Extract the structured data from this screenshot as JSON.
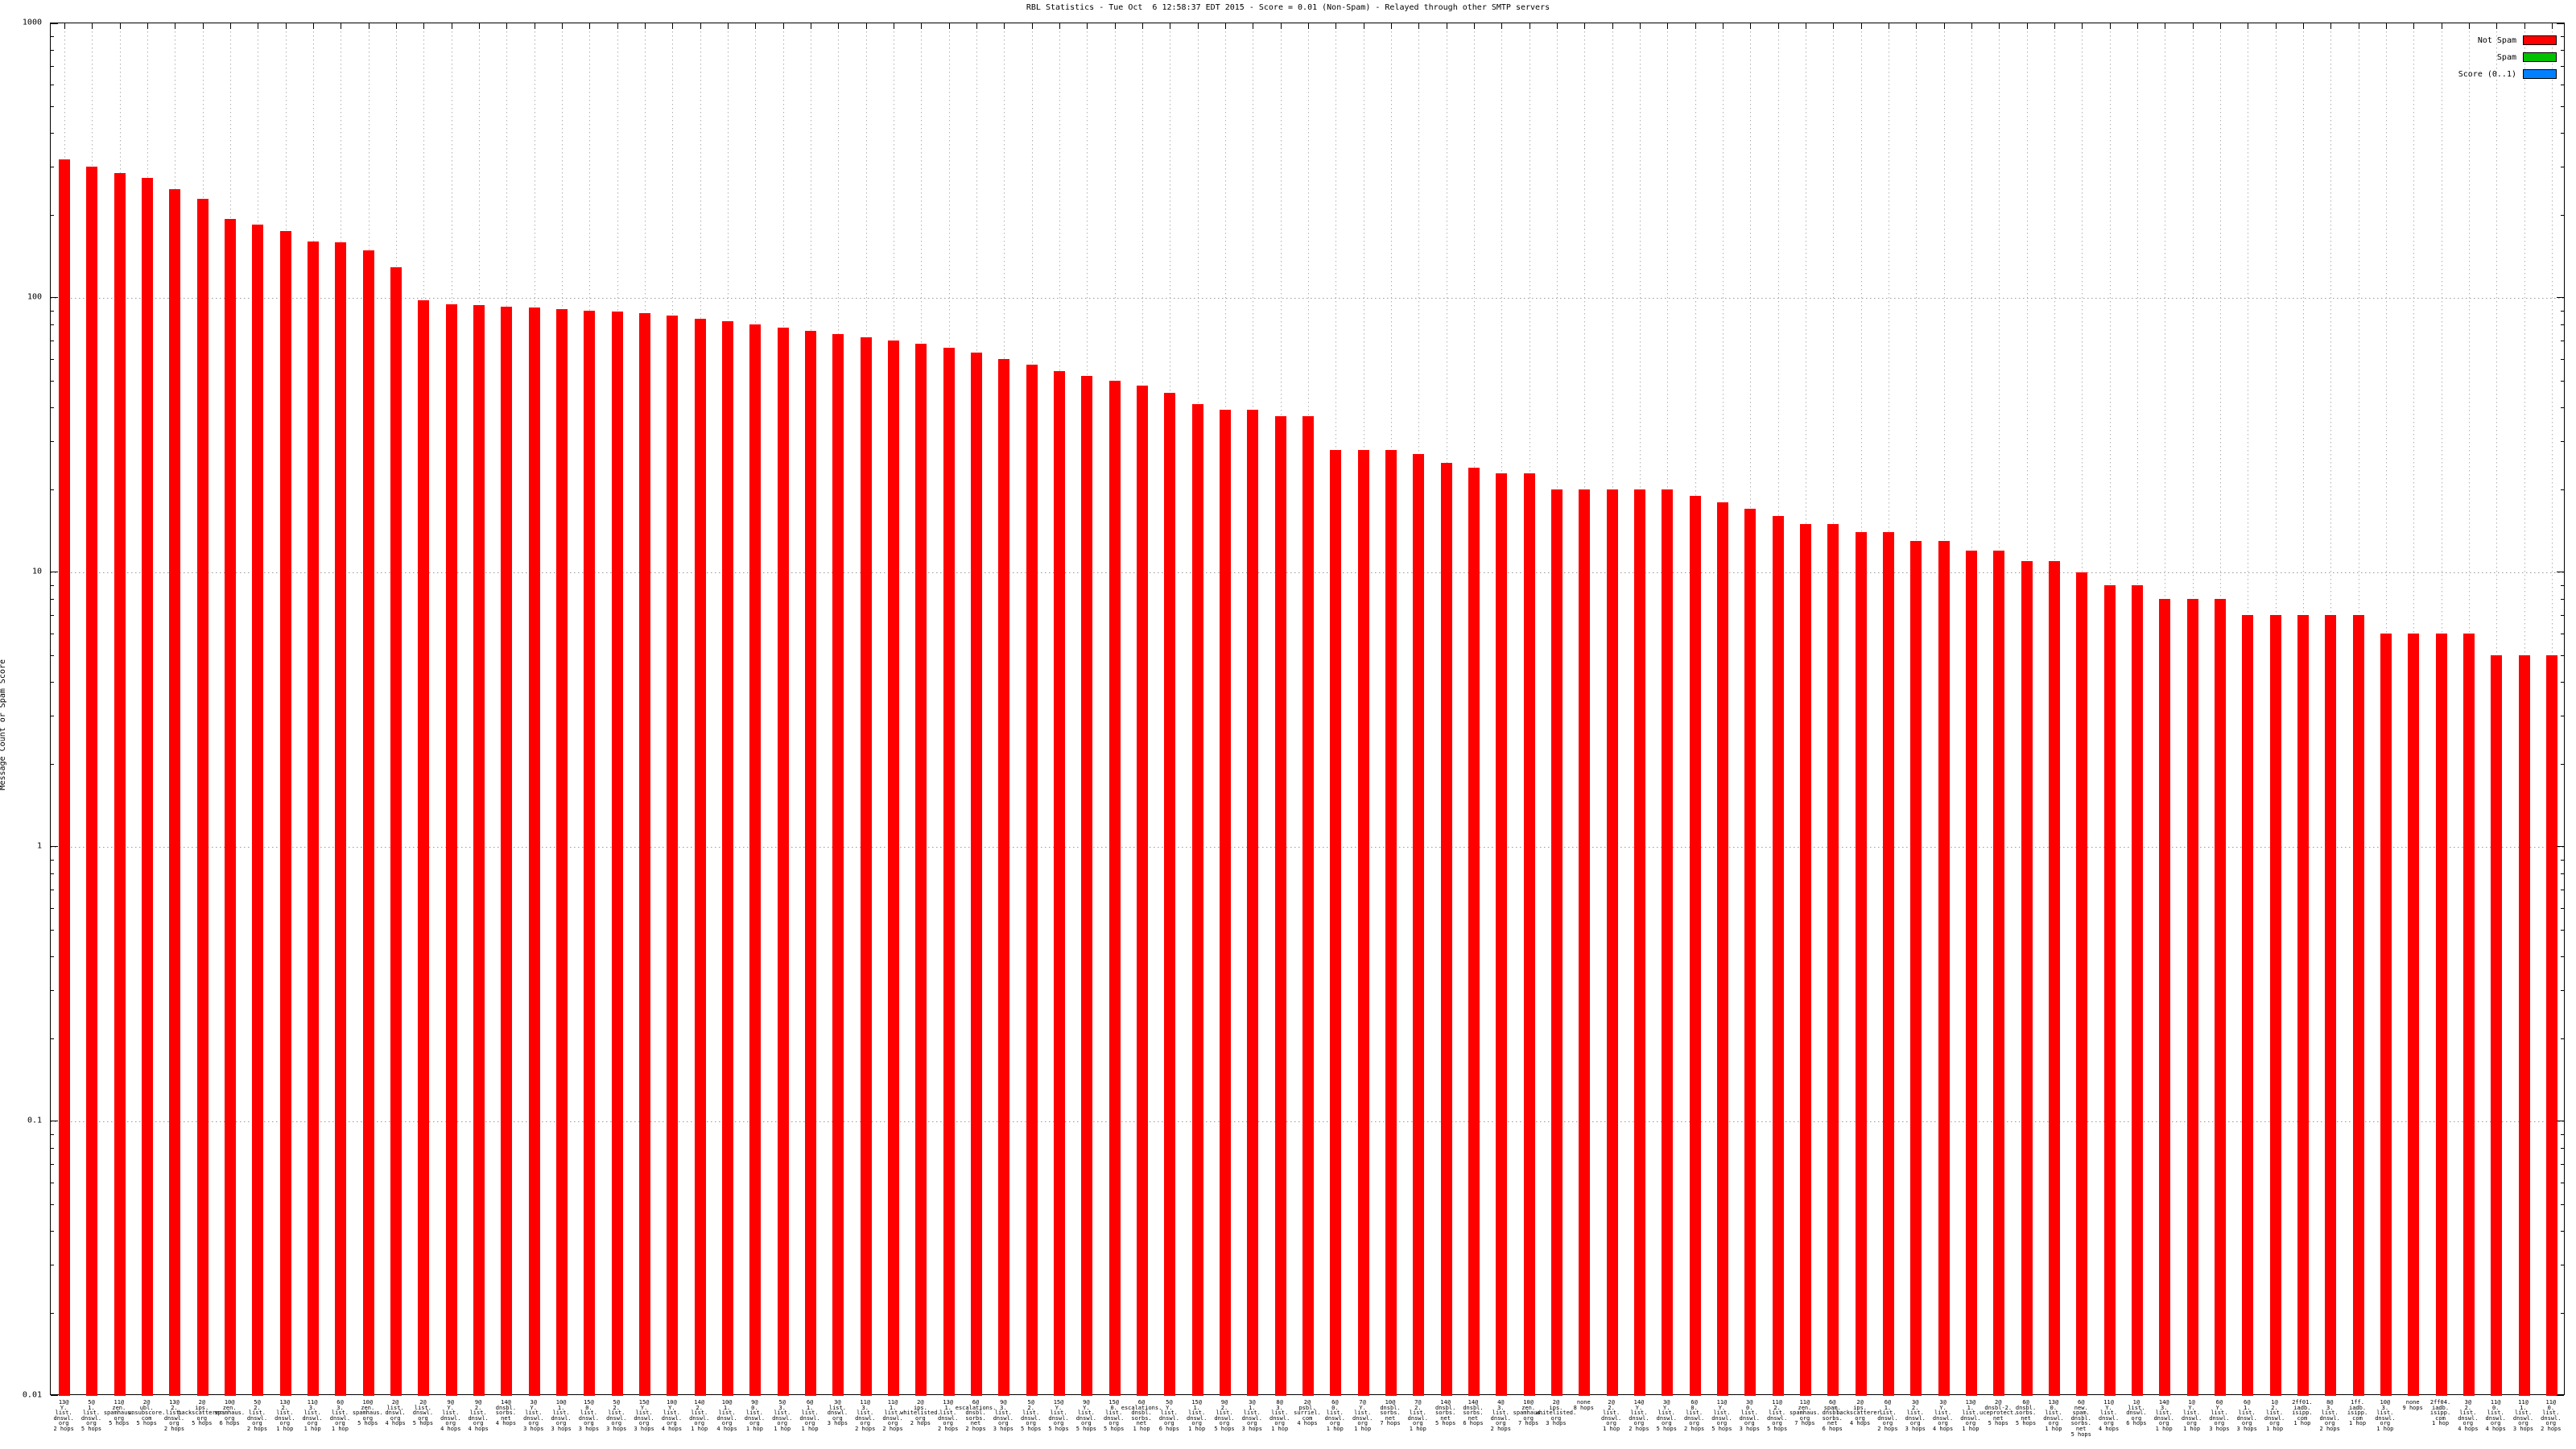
{
  "chart_data": {
    "type": "bar",
    "title": "RBL Statistics - Tue Oct  6 12:58:37 EDT 2015 - Score = 0.01 (Non-Spam) - Relayed through other SMTP servers",
    "ylabel": "Message Count or Spam Score",
    "xlabel": "",
    "y_scale": "log",
    "ylim": [
      0.01,
      1000
    ],
    "y_tick_labels": [
      "1000",
      "100",
      "10",
      "1",
      "0.1",
      "0.01"
    ],
    "y_tick_values": [
      1000,
      100,
      10,
      1,
      0.1,
      0.01
    ],
    "grid": "dotted vertical line at every bar, dotted horizontal line at each decade",
    "legend_position": "top-right-inside",
    "legend": [
      {
        "label": "Not Spam",
        "color": "#ff0000"
      },
      {
        "label": "Spam",
        "color": "#00c000"
      },
      {
        "label": "Score (0..1)",
        "color": "#0080ff"
      }
    ],
    "bar_color": "#ff0000",
    "note": "Only the Not Spam (red) series has visible bars; values estimated from log axis",
    "bars": [
      {
        "count": "13@",
        "domain": "Y.list.dnswl.org",
        "hops": "2 hops",
        "value": 320
      },
      {
        "count": "5@",
        "domain": "1.list.dnswl.org",
        "hops": "5 hops",
        "value": 300
      },
      {
        "count": "11@",
        "domain": "zen.spamhaus.org",
        "hops": "5 hops",
        "value": 285
      },
      {
        "count": "2@",
        "domain": "ubl.unsubscore.com",
        "hops": "5 hops",
        "value": 273
      },
      {
        "count": "13@",
        "domain": "2.list.dnswl.org",
        "hops": "2 hops",
        "value": 248
      },
      {
        "count": "2@",
        "domain": "ips.backscatterer.org",
        "hops": "5 hops",
        "value": 230
      },
      {
        "count": "10@",
        "domain": "zen.spamhaus.org",
        "hops": "6 hops",
        "value": 194
      },
      {
        "count": "5@",
        "domain": "2.list.dnswl.org",
        "hops": "2 hops",
        "value": 185
      },
      {
        "count": "13@",
        "domain": "2.list.dnswl.org",
        "hops": "1 hop",
        "value": 175
      },
      {
        "count": "11@",
        "domain": "3.list.dnswl.org",
        "hops": "1 hop",
        "value": 160
      },
      {
        "count": "6@",
        "domain": "3.list.dnswl.org",
        "hops": "1 hop",
        "value": 159
      },
      {
        "count": "10@",
        "domain": "zen.spamhaus.org",
        "hops": "5 hops",
        "value": 149
      },
      {
        "count": "2@",
        "domain": "list.dnswl.org",
        "hops": "4 hops",
        "value": 129
      },
      {
        "count": "2@",
        "domain": "list.dnswl.org",
        "hops": "5 hops",
        "value": 98
      },
      {
        "count": "9@",
        "domain": "Y.list.dnswl.org",
        "hops": "4 hops",
        "value": 95
      },
      {
        "count": "9@",
        "domain": "2.list.dnswl.org",
        "hops": "4 hops",
        "value": 94
      },
      {
        "count": "14@",
        "domain": "dnsbl.sorbs.net",
        "hops": "4 hops",
        "value": 93
      },
      {
        "count": "3@",
        "domain": "Y.list.dnswl.org",
        "hops": "3 hops",
        "value": 92
      },
      {
        "count": "10@",
        "domain": "1.list.dnswl.org",
        "hops": "3 hops",
        "value": 91
      },
      {
        "count": "15@",
        "domain": "0.list.dnswl.org",
        "hops": "3 hops",
        "value": 90
      },
      {
        "count": "5@",
        "domain": "2.list.dnswl.org",
        "hops": "3 hops",
        "value": 89
      },
      {
        "count": "15@",
        "domain": "Y.list.dnswl.org",
        "hops": "3 hops",
        "value": 88
      },
      {
        "count": "10@",
        "domain": "Y.list.dnswl.org",
        "hops": "4 hops",
        "value": 86
      },
      {
        "count": "14@",
        "domain": "2.list.dnswl.org",
        "hops": "1 hop",
        "value": 84
      },
      {
        "count": "10@",
        "domain": "1.list.dnswl.org",
        "hops": "4 hops",
        "value": 82
      },
      {
        "count": "9@",
        "domain": "0.list.dnswl.org",
        "hops": "1 hop",
        "value": 80
      },
      {
        "count": "5@",
        "domain": "3.list.dnswl.org",
        "hops": "1 hop",
        "value": 78
      },
      {
        "count": "6@",
        "domain": "1.list.dnswl.org",
        "hops": "1 hop",
        "value": 76
      },
      {
        "count": "3@",
        "domain": "list.dnswl.org",
        "hops": "3 hops",
        "value": 74
      },
      {
        "count": "11@",
        "domain": "3.list.dnswl.org",
        "hops": "2 hops",
        "value": 72
      },
      {
        "count": "11@",
        "domain": "1.list.dnswl.org",
        "hops": "2 hops",
        "value": 70
      },
      {
        "count": "2@",
        "domain": "ips.whitelisted.org",
        "hops": "2 hops",
        "value": 68
      },
      {
        "count": "13@",
        "domain": "1.list.dnswl.org",
        "hops": "2 hops",
        "value": 66
      },
      {
        "count": "6@",
        "domain": "escalations.dnsbl.sorbs.net",
        "hops": "2 hops",
        "value": 63
      },
      {
        "count": "9@",
        "domain": "3.list.dnswl.org",
        "hops": "3 hops",
        "value": 60
      },
      {
        "count": "5@",
        "domain": "2.list.dnswl.org",
        "hops": "5 hops",
        "value": 57
      },
      {
        "count": "15@",
        "domain": "Y.list.dnswl.org",
        "hops": "5 hops",
        "value": 54
      },
      {
        "count": "9@",
        "domain": "Y.list.dnswl.org",
        "hops": "5 hops",
        "value": 52
      },
      {
        "count": "15@",
        "domain": "0.list.dnswl.org",
        "hops": "5 hops",
        "value": 50
      },
      {
        "count": "6@",
        "domain": "escalations.dnsbl.sorbs.net",
        "hops": "1 hop",
        "value": 48
      },
      {
        "count": "5@",
        "domain": "Y.list.dnswl.org",
        "hops": "6 hops",
        "value": 45
      },
      {
        "count": "15@",
        "domain": "1.list.dnswl.org",
        "hops": "1 hop",
        "value": 41
      },
      {
        "count": "9@",
        "domain": "2.list.dnswl.org",
        "hops": "5 hops",
        "value": 39
      },
      {
        "count": "3@",
        "domain": "1.list.dnswl.org",
        "hops": "3 hops",
        "value": 39
      },
      {
        "count": "8@",
        "domain": "3.list.dnswl.org",
        "hops": "1 hop",
        "value": 37
      },
      {
        "count": "2@",
        "domain": "psbl.surriel.com",
        "hops": "4 hops",
        "value": 37
      },
      {
        "count": "6@",
        "domain": "0.list.dnswl.org",
        "hops": "1 hop",
        "value": 28
      },
      {
        "count": "7@",
        "domain": "Y.list.dnswl.org",
        "hops": "1 hop",
        "value": 28
      },
      {
        "count": "10@",
        "domain": "dnsbl.sorbs.net",
        "hops": "7 hops",
        "value": 28
      },
      {
        "count": "7@",
        "domain": "2.list.dnswl.org",
        "hops": "1 hop",
        "value": 27
      },
      {
        "count": "14@",
        "domain": "dnsbl.sorbs.net",
        "hops": "5 hops",
        "value": 25
      },
      {
        "count": "14@",
        "domain": "dnsbl.sorbs.net",
        "hops": "6 hops",
        "value": 24
      },
      {
        "count": "4@",
        "domain": "3.list.dnswl.org",
        "hops": "2 hops",
        "value": 23
      },
      {
        "count": "10@",
        "domain": "zen.spamhaus.org",
        "hops": "7 hops",
        "value": 23
      },
      {
        "count": "2@",
        "domain": "ips.whitelisted.org",
        "hops": "3 hops",
        "value": 20
      },
      {
        "count": "none",
        "domain": "",
        "hops": "8 hops",
        "value": 20
      },
      {
        "count": "2@",
        "domain": "2.list.dnswl.org",
        "hops": "1 hop",
        "value": 20
      },
      {
        "count": "14@",
        "domain": "Y.list.dnswl.org",
        "hops": "2 hops",
        "value": 20
      },
      {
        "count": "3@",
        "domain": "Y.list.dnswl.org",
        "hops": "5 hops",
        "value": 20
      },
      {
        "count": "6@",
        "domain": "0.list.dnswl.org",
        "hops": "2 hops",
        "value": 19
      },
      {
        "count": "11@",
        "domain": "Y.list.dnswl.org",
        "hops": "5 hops",
        "value": 18
      },
      {
        "count": "3@",
        "domain": "0.list.dnswl.org",
        "hops": "3 hops",
        "value": 17
      },
      {
        "count": "11@",
        "domain": "2.list.dnswl.org",
        "hops": "5 hops",
        "value": 16
      },
      {
        "count": "11@",
        "domain": "zen.spamhaus.org",
        "hops": "7 hops",
        "value": 15
      },
      {
        "count": "6@",
        "domain": "spam.dnsbl.sorbs.net",
        "hops": "6 hops",
        "value": 15
      },
      {
        "count": "2@",
        "domain": "ips.backscatterer.org",
        "hops": "4 hops",
        "value": 14
      },
      {
        "count": "6@",
        "domain": "1.list.dnswl.org",
        "hops": "2 hops",
        "value": 14
      },
      {
        "count": "3@",
        "domain": "2.list.dnswl.org",
        "hops": "3 hops",
        "value": 13
      },
      {
        "count": "3@",
        "domain": "Y.list.dnswl.org",
        "hops": "4 hops",
        "value": 13
      },
      {
        "count": "13@",
        "domain": "1.list.dnswl.org",
        "hops": "1 hop",
        "value": 12
      },
      {
        "count": "2@",
        "domain": "dnsbl-2.uceprotect.net",
        "hops": "5 hops",
        "value": 12
      },
      {
        "count": "6@",
        "domain": "dnsbl.sorbs.net",
        "hops": "5 hops",
        "value": 11
      },
      {
        "count": "13@",
        "domain": "0.list.dnswl.org",
        "hops": "1 hop",
        "value": 11
      },
      {
        "count": "6@",
        "domain": "new.spam.dnsbl.sorbs.net",
        "hops": "5 hops",
        "value": 10
      },
      {
        "count": "11@",
        "domain": "Y.list.dnswl.org",
        "hops": "4 hops",
        "value": 9
      },
      {
        "count": "1@",
        "domain": "list.dnswl.org",
        "hops": "6 hops",
        "value": 9
      },
      {
        "count": "14@",
        "domain": "3.list.dnswl.org",
        "hops": "1 hop",
        "value": 8
      },
      {
        "count": "1@",
        "domain": "Y.list.dnswl.org",
        "hops": "1 hop",
        "value": 8
      },
      {
        "count": "6@",
        "domain": "Y.list.dnswl.org",
        "hops": "3 hops",
        "value": 8
      },
      {
        "count": "6@",
        "domain": "1.list.dnswl.org",
        "hops": "3 hops",
        "value": 7
      },
      {
        "count": "1@",
        "domain": "2.list.dnswl.org",
        "hops": "1 hop",
        "value": 7
      },
      {
        "count": "2ff01.",
        "domain": "iadb.isipp.com",
        "hops": "1 hop",
        "value": 7
      },
      {
        "count": "8@",
        "domain": "3.list.dnswl.org",
        "hops": "2 hops",
        "value": 7
      },
      {
        "count": "1ff.",
        "domain": "iadb.isipp.com",
        "hops": "1 hop",
        "value": 7
      },
      {
        "count": "10@",
        "domain": "3.list.dnswl.org",
        "hops": "1 hop",
        "value": 6
      },
      {
        "count": "none",
        "domain": "",
        "hops": "9 hops",
        "value": 6
      },
      {
        "count": "2ff04.",
        "domain": "iadb.isipp.com",
        "hops": "1 hop",
        "value": 6
      },
      {
        "count": "3@",
        "domain": "2.list.dnswl.org",
        "hops": "4 hops",
        "value": 6
      },
      {
        "count": "11@",
        "domain": "0.list.dnswl.org",
        "hops": "4 hops",
        "value": 5
      },
      {
        "count": "11@",
        "domain": "1.list.dnswl.org",
        "hops": "3 hops",
        "value": 5
      },
      {
        "count": "11@",
        "domain": "0.list.dnswl.org",
        "hops": "2 hops",
        "value": 5
      }
    ]
  }
}
